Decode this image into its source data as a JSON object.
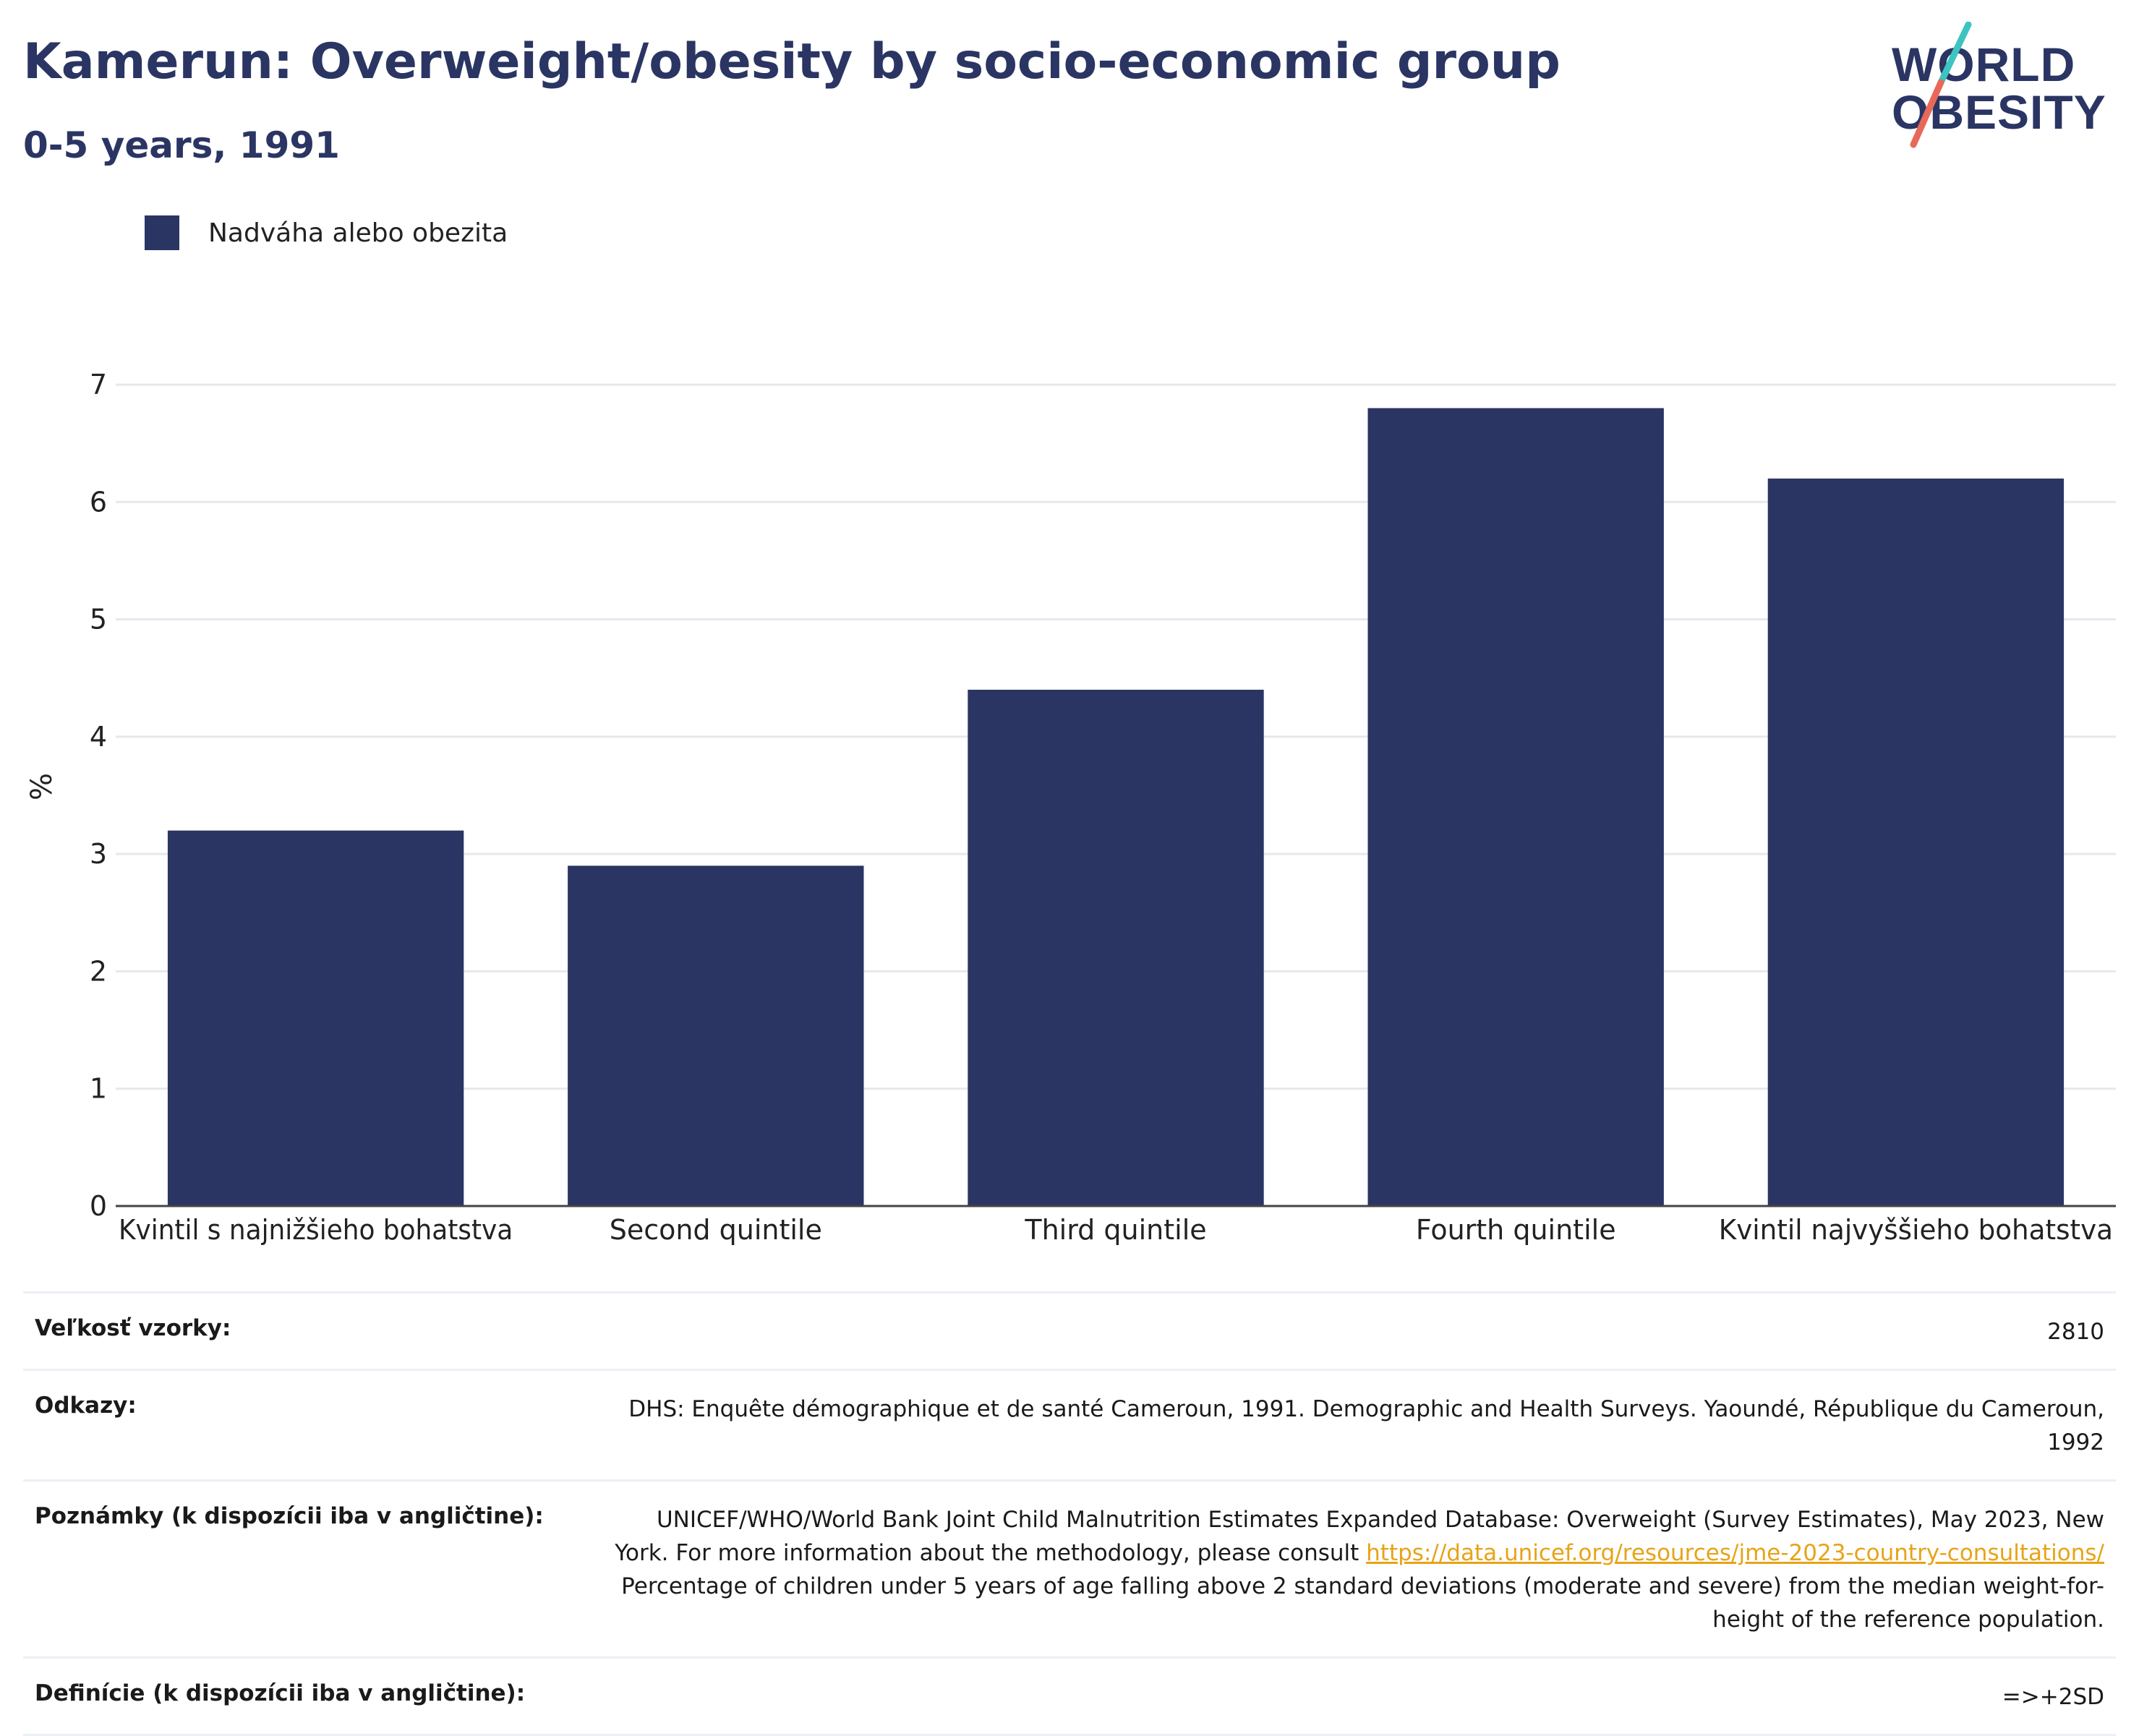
{
  "header": {
    "title": "Kamerun: Overweight/obesity by socio-economic group",
    "subtitle": "0-5 years, 1991"
  },
  "logo": {
    "line1": "WORLD",
    "line2": "OBESITY",
    "colors": {
      "text": "#2a3563",
      "slash_top": "#3cc4c0",
      "slash_bottom": "#e8695a"
    }
  },
  "legend": {
    "label": "Nadváha alebo obezita",
    "color": "#2a3563"
  },
  "chart_data": {
    "type": "bar",
    "categories": [
      "Kvintil s najnižšieho bohatstva",
      "Second quintile",
      "Third quintile",
      "Fourth quintile",
      "Kvintil najvyššieho bohatstva"
    ],
    "series": [
      {
        "name": "Nadváha alebo obezita",
        "values": [
          3.2,
          2.9,
          4.4,
          6.8,
          6.2
        ]
      }
    ],
    "ylabel": "%",
    "xlabel": "",
    "ylim": [
      0,
      7
    ],
    "yticks": [
      0,
      1,
      2,
      3,
      4,
      5,
      6,
      7
    ],
    "grid": true,
    "legend_position": "top-left",
    "bar_color": "#2a3563"
  },
  "info_table": {
    "sample_size_label": "Veľkosť vzorky:",
    "sample_size_value": "2810",
    "references_label": "Odkazy:",
    "references_value": "DHS: Enquête démographique et de santé Cameroun, 1991. Demographic and Health Surveys. Yaoundé, République du Cameroun, 1992",
    "notes_label": "Poznámky (k dispozícii iba v angličtine):",
    "notes_text_before": "UNICEF/WHO/World Bank Joint Child Malnutrition Estimates Expanded Database: Overweight (Survey Estimates), May 2023, New York. For more information about the methodology, please consult ",
    "notes_link": "https://data.unicef.org/resources/jme-2023-country-consultations/",
    "notes_text_after": " Percentage of children under 5 years of age falling above 2 standard deviations (moderate and severe) from the median weight-for-height of the reference population.",
    "definitions_label": "Definície (k dispozícii iba v angličtine):",
    "definitions_value": "=>+2SD"
  }
}
